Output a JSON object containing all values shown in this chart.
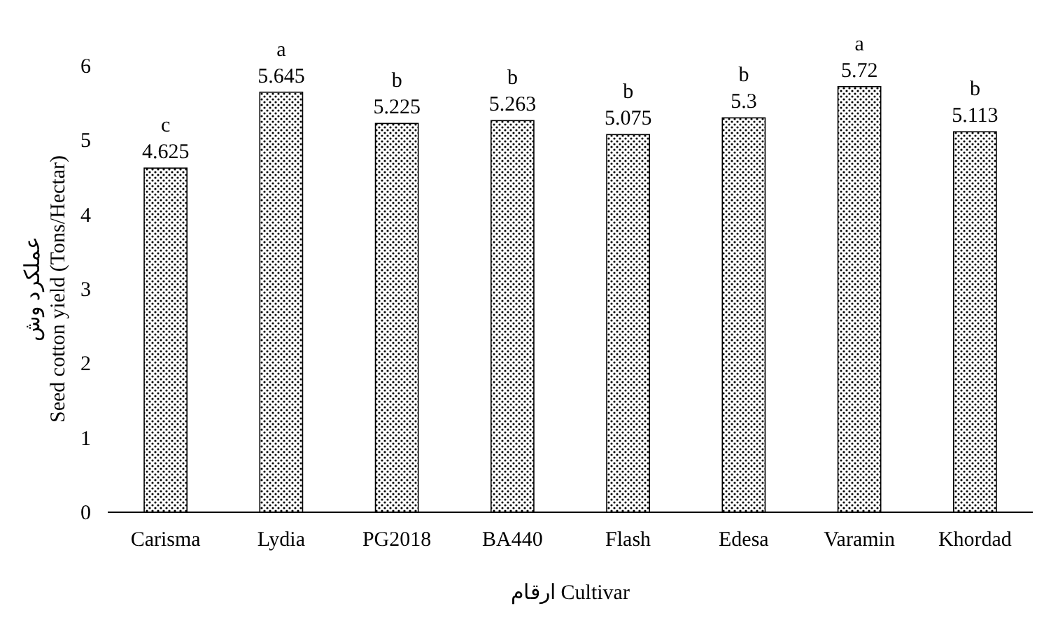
{
  "chart_data": {
    "type": "bar",
    "ylabel": "عملکرد وش\nSeed cotton yield (Tons/Hectar)",
    "xlabel": "ارقام Cultivar",
    "categories": [
      "Carisma",
      "Lydia",
      "PG2018",
      "BA440",
      "Flash",
      "Edesa",
      "Varamin",
      "Khordad"
    ],
    "values": [
      4.625,
      5.645,
      5.225,
      5.263,
      5.075,
      5.3,
      5.72,
      5.113
    ],
    "color": "#000000",
    "data_labels": true,
    "ylim": [
      0,
      6
    ],
    "yticks": [
      0,
      1,
      2,
      3,
      4,
      5,
      6
    ],
    "grid": false,
    "annotations": [
      {
        "text": "c",
        "x": "Carisma",
        "y": 4.625
      },
      {
        "text": "a",
        "x": "Lydia",
        "y": 5.645
      },
      {
        "text": "b",
        "x": "PG2018",
        "y": 5.225
      },
      {
        "text": "b",
        "x": "BA440",
        "y": 5.263
      },
      {
        "text": "b",
        "x": "Flash",
        "y": 5.075
      },
      {
        "text": "b",
        "x": "Edesa",
        "y": 5.3
      },
      {
        "text": "a",
        "x": "Varamin",
        "y": 5.72
      },
      {
        "text": "b",
        "x": "Khordad",
        "y": 5.113
      }
    ]
  }
}
